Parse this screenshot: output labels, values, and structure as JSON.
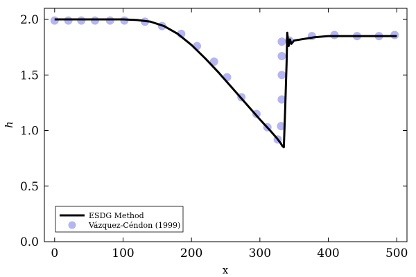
{
  "chart_data": {
    "type": "line",
    "xlabel": "x",
    "ylabel": "h",
    "xlim": [
      -15,
      515
    ],
    "ylim": [
      0.0,
      2.1
    ],
    "xticks": [
      0,
      100,
      200,
      300,
      400,
      500
    ],
    "yticks": [
      0.0,
      0.5,
      1.0,
      1.5,
      2.0
    ],
    "ytick_labels": [
      "0.0",
      "0.5",
      "1.0",
      "1.5",
      "2.0"
    ],
    "grid": false,
    "legend_position": "lower-left",
    "series": [
      {
        "name": "ESDG Method",
        "kind": "line",
        "color": "#000000",
        "x": [
          0,
          50,
          100,
          120,
          140,
          160,
          180,
          200,
          220,
          240,
          260,
          280,
          300,
          315,
          325,
          330,
          333,
          335,
          337,
          339,
          340,
          342,
          344,
          346,
          350,
          360,
          380,
          400,
          450,
          500
        ],
        "y": [
          2.0,
          2.0,
          2.0,
          1.995,
          1.98,
          1.94,
          1.87,
          1.77,
          1.65,
          1.52,
          1.38,
          1.24,
          1.1,
          1.0,
          0.93,
          0.89,
          0.86,
          0.85,
          1.2,
          1.6,
          1.88,
          1.76,
          1.82,
          1.78,
          1.81,
          1.82,
          1.84,
          1.85,
          1.85,
          1.85
        ]
      },
      {
        "name": "Vázquez-Céndon (1999)",
        "kind": "scatter",
        "color": "#6b6be6",
        "x": [
          0,
          20,
          39,
          59,
          81,
          102,
          132,
          157,
          185,
          208,
          233,
          252,
          273,
          295,
          311,
          326,
          331,
          332,
          332,
          332,
          332,
          343,
          376,
          409,
          442,
          474,
          497
        ],
        "y": [
          1.99,
          1.99,
          1.99,
          1.99,
          1.99,
          1.99,
          1.98,
          1.94,
          1.87,
          1.76,
          1.62,
          1.48,
          1.3,
          1.15,
          1.03,
          0.92,
          1.04,
          1.28,
          1.5,
          1.67,
          1.8,
          1.81,
          1.85,
          1.86,
          1.85,
          1.85,
          1.86
        ]
      }
    ]
  }
}
